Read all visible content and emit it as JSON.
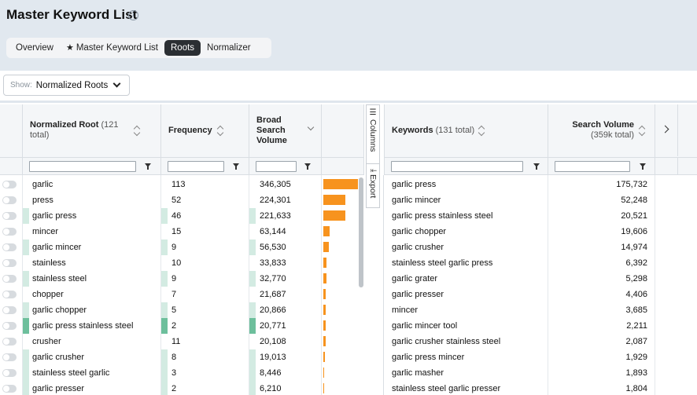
{
  "header": {
    "title": "Master Keyword List",
    "info_icon": "info-icon"
  },
  "tabs": [
    {
      "label": "Overview",
      "active": false
    },
    {
      "label": "Master Keyword List",
      "icon": "star-icon",
      "active": false
    },
    {
      "label": "Roots",
      "active": true
    },
    {
      "label": "Normalizer",
      "active": false
    }
  ],
  "show_filter": {
    "label": "Show:",
    "value": "Normalized Roots"
  },
  "left_table": {
    "col_root": {
      "title": "Normalized Root",
      "sub": "(121 total)"
    },
    "col_freq": {
      "title": "Frequency"
    },
    "col_vol": {
      "title": "Broad Search Volume"
    },
    "rows": [
      {
        "root": "garlic",
        "freq": "113",
        "volume": "346,305",
        "vol_num": 346305,
        "shade": 0
      },
      {
        "root": "press",
        "freq": "52",
        "volume": "224,301",
        "vol_num": 224301,
        "shade": 0
      },
      {
        "root": "garlic press",
        "freq": "46",
        "volume": "221,633",
        "vol_num": 221633,
        "shade": 1
      },
      {
        "root": "mincer",
        "freq": "15",
        "volume": "63,144",
        "vol_num": 63144,
        "shade": 0
      },
      {
        "root": "garlic mincer",
        "freq": "9",
        "volume": "56,530",
        "vol_num": 56530,
        "shade": 1
      },
      {
        "root": "stainless",
        "freq": "10",
        "volume": "33,833",
        "vol_num": 33833,
        "shade": 0
      },
      {
        "root": "stainless steel",
        "freq": "9",
        "volume": "32,770",
        "vol_num": 32770,
        "shade": 1
      },
      {
        "root": "chopper",
        "freq": "7",
        "volume": "21,687",
        "vol_num": 21687,
        "shade": 0
      },
      {
        "root": "garlic chopper",
        "freq": "5",
        "volume": "20,866",
        "vol_num": 20866,
        "shade": 1
      },
      {
        "root": "garlic press stainless steel",
        "freq": "2",
        "volume": "20,771",
        "vol_num": 20771,
        "shade": 2
      },
      {
        "root": "crusher",
        "freq": "11",
        "volume": "20,108",
        "vol_num": 20108,
        "shade": 0
      },
      {
        "root": "garlic crusher",
        "freq": "8",
        "volume": "19,013",
        "vol_num": 19013,
        "shade": 1
      },
      {
        "root": "stainless steel garlic",
        "freq": "3",
        "volume": "8,446",
        "vol_num": 8446,
        "shade": 1
      },
      {
        "root": "garlic presser",
        "freq": "2",
        "volume": "6,210",
        "vol_num": 6210,
        "shade": 1
      }
    ]
  },
  "side_buttons": {
    "columns": "Columns",
    "export": "Export"
  },
  "right_table": {
    "col_kw": {
      "title": "Keywords",
      "sub": "(131 total)"
    },
    "col_sv": {
      "title": "Search Volume",
      "sub": "(359k total)"
    },
    "rows": [
      {
        "keyword": "garlic press",
        "volume": "175,732"
      },
      {
        "keyword": "garlic mincer",
        "volume": "52,248"
      },
      {
        "keyword": "garlic press stainless steel",
        "volume": "20,521"
      },
      {
        "keyword": "garlic chopper",
        "volume": "19,606"
      },
      {
        "keyword": "garlic crusher",
        "volume": "14,974"
      },
      {
        "keyword": "stainless steel garlic press",
        "volume": "6,392"
      },
      {
        "keyword": "garlic grater",
        "volume": "5,298"
      },
      {
        "keyword": "garlic presser",
        "volume": "4,406"
      },
      {
        "keyword": "mincer",
        "volume": "3,685"
      },
      {
        "keyword": "garlic mincer tool",
        "volume": "2,211"
      },
      {
        "keyword": "garlic crusher stainless steel",
        "volume": "2,087"
      },
      {
        "keyword": "garlic press mincer",
        "volume": "1,929"
      },
      {
        "keyword": "garlic masher",
        "volume": "1,893"
      },
      {
        "keyword": "stainless steel garlic presser",
        "volume": "1,804"
      }
    ]
  },
  "colors": {
    "bar": "#f7931e",
    "shade_light": "#d3ebe2",
    "shade_dark": "#6dbf9c",
    "active_tab": "#2b2f33"
  }
}
